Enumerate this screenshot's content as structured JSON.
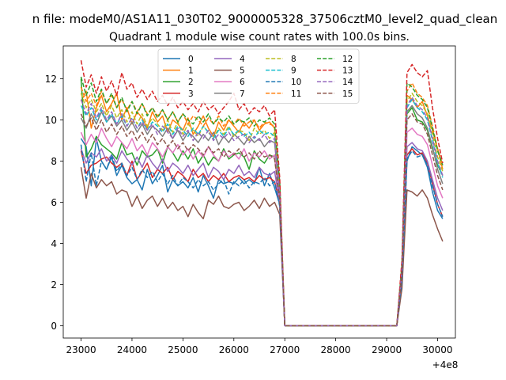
{
  "figure": {
    "suptitle": "n file: modeM0/AS1A11_030T02_9000005328_37506cztM0_level2_quad_clean",
    "title": "Quadrant 1 module wise count rates with 100.0s bins.",
    "x_offset_label": "+4e8"
  },
  "chart_data": {
    "type": "line",
    "title": "Quadrant 1 module wise count rates with 100.0s bins.",
    "xlabel": "",
    "ylabel": "",
    "x_offset": 400000000,
    "xlim": [
      22650,
      30350
    ],
    "ylim": [
      -0.6,
      13.6
    ],
    "xticks": [
      23000,
      24000,
      25000,
      26000,
      27000,
      28000,
      29000,
      30000
    ],
    "yticks": [
      0,
      2,
      4,
      6,
      8,
      10,
      12
    ],
    "grid": false,
    "legend": {
      "position": "top-center",
      "ncol": 4
    },
    "x_start": 23000,
    "x_step": 100,
    "series": [
      {
        "name": "0",
        "style": "solid",
        "color": "#1f77b4",
        "values": [
          9.1,
          8.7,
          6.8,
          9.1,
          8.0,
          7.6,
          8.2,
          7.3,
          7.8,
          7.2,
          6.9,
          7.1,
          6.6,
          7.6,
          6.9,
          7.3,
          7.8,
          6.5,
          7.1,
          6.8,
          7.0,
          6.7,
          7.2,
          6.5,
          7.3,
          6.8,
          6.2,
          7.1,
          6.9,
          7.0,
          6.9,
          7.2,
          6.9,
          7.1,
          6.9,
          7.7,
          6.8,
          7.4,
          6.7,
          5.9,
          0,
          0,
          0,
          0,
          0,
          0,
          0,
          0,
          0,
          0,
          0,
          0,
          0,
          0,
          0,
          0,
          0,
          0,
          0,
          0,
          0,
          0,
          0,
          2.3,
          8.0,
          8.7,
          8.5,
          8.3,
          7.7,
          6.5,
          5.6,
          5.2
        ]
      },
      {
        "name": "1",
        "style": "solid",
        "color": "#ff7f0e",
        "values": [
          10.9,
          11.4,
          9.6,
          10.6,
          11.2,
          10.4,
          10.8,
          11.3,
          10.0,
          10.6,
          9.8,
          10.4,
          10.1,
          9.6,
          10.4,
          9.9,
          10.2,
          9.4,
          10.0,
          9.8,
          9.5,
          10.1,
          9.3,
          9.7,
          10.2,
          9.6,
          9.2,
          9.9,
          9.5,
          10.0,
          9.7,
          9.4,
          9.9,
          9.6,
          10.0,
          9.5,
          9.8,
          9.9,
          9.6,
          6.2,
          0,
          0,
          0,
          0,
          0,
          0,
          0,
          0,
          0,
          0,
          0,
          0,
          0,
          0,
          0,
          0,
          0,
          0,
          0,
          0,
          0,
          0,
          0,
          2.6,
          11.2,
          11.0,
          10.6,
          10.9,
          10.2,
          9.5,
          8.6,
          7.6
        ]
      },
      {
        "name": "2",
        "style": "solid",
        "color": "#2ca02c",
        "values": [
          12.0,
          8.2,
          8.6,
          9.2,
          8.8,
          8.6,
          8.4,
          8.1,
          8.9,
          8.3,
          8.4,
          7.8,
          8.5,
          8.2,
          8.3,
          8.6,
          7.9,
          8.7,
          8.4,
          8.0,
          8.5,
          8.1,
          8.6,
          7.9,
          8.3,
          7.8,
          8.2,
          8.0,
          8.6,
          8.1,
          8.3,
          8.4,
          8.2,
          7.6,
          8.5,
          8.1,
          7.9,
          8.3,
          8.2,
          6.1,
          0,
          0,
          0,
          0,
          0,
          0,
          0,
          0,
          0,
          0,
          0,
          0,
          0,
          0,
          0,
          0,
          0,
          0,
          0,
          0,
          0,
          0,
          0,
          2.4,
          10.3,
          10.6,
          10.0,
          9.9,
          9.5,
          8.6,
          7.8,
          7.3
        ]
      },
      {
        "name": "3",
        "style": "solid",
        "color": "#d62728",
        "values": [
          8.5,
          7.4,
          7.8,
          7.9,
          8.1,
          8.2,
          7.9,
          7.7,
          7.9,
          7.3,
          8.0,
          7.1,
          7.5,
          7.9,
          7.2,
          7.6,
          7.4,
          7.7,
          7.1,
          7.5,
          7.3,
          7.0,
          7.6,
          7.2,
          7.4,
          7.0,
          7.3,
          7.1,
          7.4,
          7.0,
          7.2,
          7.3,
          7.1,
          7.2,
          7.0,
          7.3,
          7.1,
          7.2,
          7.0,
          6.0,
          0,
          0,
          0,
          0,
          0,
          0,
          0,
          0,
          0,
          0,
          0,
          0,
          0,
          0,
          0,
          0,
          0,
          0,
          0,
          0,
          0,
          0,
          0,
          2.1,
          8.3,
          8.6,
          8.3,
          8.4,
          7.9,
          6.9,
          5.9,
          5.3
        ]
      },
      {
        "name": "4",
        "style": "solid",
        "color": "#9467bd",
        "values": [
          8.6,
          7.9,
          8.4,
          8.2,
          8.6,
          8.0,
          8.3,
          7.9,
          8.5,
          8.1,
          7.8,
          8.2,
          7.7,
          8.3,
          7.9,
          7.6,
          8.1,
          7.5,
          7.9,
          7.7,
          7.4,
          7.8,
          7.3,
          7.6,
          7.9,
          7.2,
          7.7,
          7.5,
          7.1,
          7.6,
          7.4,
          7.8,
          7.3,
          7.5,
          7.2,
          7.7,
          7.4,
          7.3,
          7.5,
          6.0,
          0,
          0,
          0,
          0,
          0,
          0,
          0,
          0,
          0,
          0,
          0,
          0,
          0,
          0,
          0,
          0,
          0,
          0,
          0,
          0,
          0,
          0,
          0,
          2.3,
          8.7,
          8.9,
          8.6,
          8.5,
          8.0,
          7.1,
          6.2,
          5.6
        ]
      },
      {
        "name": "5",
        "style": "solid",
        "color": "#8c564b",
        "values": [
          7.7,
          6.2,
          7.4,
          6.7,
          7.1,
          6.8,
          7.0,
          6.4,
          6.6,
          6.5,
          5.8,
          6.3,
          5.7,
          6.1,
          6.3,
          5.8,
          6.2,
          5.7,
          6.0,
          5.6,
          5.8,
          5.3,
          5.9,
          5.5,
          5.2,
          6.1,
          5.9,
          6.3,
          5.8,
          5.7,
          5.9,
          6.0,
          5.6,
          5.8,
          6.1,
          5.7,
          6.2,
          5.8,
          6.0,
          5.4,
          0,
          0,
          0,
          0,
          0,
          0,
          0,
          0,
          0,
          0,
          0,
          0,
          0,
          0,
          0,
          0,
          0,
          0,
          0,
          0,
          0,
          0,
          0,
          1.8,
          6.6,
          6.5,
          6.3,
          6.6,
          6.2,
          5.4,
          4.7,
          4.1
        ]
      },
      {
        "name": "6",
        "style": "solid",
        "color": "#e377c2",
        "values": [
          9.4,
          8.8,
          9.3,
          8.9,
          9.6,
          9.1,
          8.7,
          9.2,
          8.9,
          8.6,
          9.1,
          8.5,
          8.8,
          8.3,
          8.9,
          8.6,
          8.2,
          8.7,
          8.4,
          8.8,
          8.3,
          8.6,
          8.1,
          8.5,
          8.2,
          8.7,
          8.3,
          8.0,
          8.5,
          8.2,
          8.4,
          8.1,
          8.6,
          8.0,
          8.4,
          8.2,
          8.5,
          8.1,
          8.3,
          6.0,
          0,
          0,
          0,
          0,
          0,
          0,
          0,
          0,
          0,
          0,
          0,
          0,
          0,
          0,
          0,
          0,
          0,
          0,
          0,
          0,
          0,
          0,
          0,
          2.5,
          9.4,
          9.6,
          9.3,
          9.2,
          8.8,
          7.8,
          6.8,
          6.2
        ]
      },
      {
        "name": "7",
        "style": "solid",
        "color": "#7f7f7f",
        "values": [
          10.1,
          9.6,
          10.3,
          9.8,
          10.4,
          9.9,
          10.2,
          9.7,
          10.0,
          9.5,
          9.9,
          9.4,
          9.8,
          9.3,
          9.7,
          9.5,
          9.2,
          9.6,
          9.1,
          9.5,
          9.0,
          9.4,
          9.2,
          8.9,
          9.3,
          9.0,
          9.4,
          8.8,
          9.2,
          8.9,
          9.3,
          9.1,
          8.8,
          9.2,
          8.9,
          9.1,
          8.7,
          9.0,
          8.9,
          6.3,
          0,
          0,
          0,
          0,
          0,
          0,
          0,
          0,
          0,
          0,
          0,
          0,
          0,
          0,
          0,
          0,
          0,
          0,
          0,
          0,
          0,
          0,
          0,
          2.6,
          10.4,
          10.7,
          10.3,
          10.1,
          9.6,
          8.7,
          7.6,
          6.9
        ]
      },
      {
        "name": "8",
        "style": "dashed",
        "color": "#bcbd22",
        "values": [
          11.3,
          10.6,
          11.0,
          10.4,
          10.8,
          10.2,
          10.7,
          10.1,
          10.5,
          9.9,
          10.4,
          9.8,
          10.3,
          9.7,
          10.1,
          9.8,
          9.5,
          10.0,
          9.4,
          9.9,
          9.3,
          9.8,
          9.5,
          9.2,
          9.7,
          9.4,
          9.1,
          9.6,
          9.3,
          9.7,
          9.2,
          9.5,
          9.4,
          9.0,
          9.6,
          9.3,
          9.5,
          9.1,
          9.4,
          6.6,
          0,
          0,
          0,
          0,
          0,
          0,
          0,
          0,
          0,
          0,
          0,
          0,
          0,
          0,
          0,
          0,
          0,
          0,
          0,
          0,
          0,
          0,
          0,
          2.8,
          10.9,
          11.3,
          10.9,
          10.7,
          10.3,
          9.3,
          8.2,
          7.5
        ]
      },
      {
        "name": "9",
        "style": "dashed",
        "color": "#17becf",
        "values": [
          10.7,
          10.2,
          10.6,
          10.0,
          10.5,
          9.9,
          10.3,
          9.8,
          10.2,
          9.7,
          10.1,
          9.6,
          10.0,
          9.5,
          9.9,
          9.7,
          9.4,
          9.8,
          9.3,
          9.7,
          9.5,
          9.2,
          9.6,
          9.3,
          9.7,
          9.4,
          9.1,
          9.5,
          9.2,
          9.6,
          9.3,
          9.5,
          9.2,
          9.4,
          9.1,
          9.5,
          9.3,
          9.4,
          9.2,
          6.5,
          0,
          0,
          0,
          0,
          0,
          0,
          0,
          0,
          0,
          0,
          0,
          0,
          0,
          0,
          0,
          0,
          0,
          0,
          0,
          0,
          0,
          0,
          0,
          2.7,
          10.6,
          11.0,
          10.6,
          10.4,
          10.0,
          9.0,
          7.9,
          7.2
        ]
      },
      {
        "name": "10",
        "style": "dashed",
        "color": "#1f77b4",
        "values": [
          8.8,
          7.0,
          8.4,
          6.8,
          8.0,
          7.6,
          8.3,
          7.5,
          7.9,
          7.3,
          7.7,
          7.1,
          7.6,
          7.2,
          7.5,
          7.0,
          7.4,
          6.9,
          7.3,
          6.8,
          7.2,
          7.0,
          6.7,
          7.1,
          6.8,
          7.0,
          6.6,
          6.9,
          7.1,
          6.4,
          7.0,
          6.8,
          7.1,
          6.7,
          7.0,
          6.9,
          7.2,
          6.8,
          7.0,
          5.8,
          0,
          0,
          0,
          0,
          0,
          0,
          0,
          0,
          0,
          0,
          0,
          0,
          0,
          0,
          0,
          0,
          0,
          0,
          0,
          0,
          0,
          0,
          0,
          2.2,
          8.1,
          8.5,
          8.2,
          8.3,
          7.8,
          6.8,
          5.9,
          5.3
        ]
      },
      {
        "name": "11",
        "style": "dashed",
        "color": "#ff7f0e",
        "values": [
          11.6,
          10.9,
          11.3,
          10.7,
          11.4,
          10.8,
          11.2,
          10.6,
          11.0,
          10.5,
          10.9,
          10.4,
          10.8,
          10.3,
          10.6,
          10.2,
          10.5,
          10.0,
          10.4,
          9.9,
          10.3,
          9.8,
          10.2,
          10.0,
          9.7,
          10.1,
          9.8,
          10.2,
          9.7,
          10.0,
          9.8,
          10.1,
          9.7,
          9.9,
          10.0,
          9.6,
          9.9,
          9.8,
          9.7,
          6.8,
          0,
          0,
          0,
          0,
          0,
          0,
          0,
          0,
          0,
          0,
          0,
          0,
          0,
          0,
          0,
          0,
          0,
          0,
          0,
          0,
          0,
          0,
          0,
          2.9,
          11.4,
          11.8,
          11.3,
          11.1,
          10.7,
          9.7,
          8.6,
          7.8
        ]
      },
      {
        "name": "12",
        "style": "dashed",
        "color": "#2ca02c",
        "values": [
          12.1,
          11.2,
          11.8,
          10.9,
          11.5,
          10.8,
          11.3,
          10.6,
          11.1,
          10.4,
          10.9,
          10.3,
          10.8,
          10.2,
          10.6,
          10.1,
          10.5,
          10.0,
          10.4,
          9.9,
          10.3,
          10.0,
          9.8,
          10.2,
          9.9,
          10.3,
          9.8,
          10.1,
          9.9,
          10.2,
          9.8,
          10.0,
          9.9,
          10.1,
          9.7,
          10.0,
          9.9,
          10.1,
          9.8,
          7.0,
          0,
          0,
          0,
          0,
          0,
          0,
          0,
          0,
          0,
          0,
          0,
          0,
          0,
          0,
          0,
          0,
          0,
          0,
          0,
          0,
          0,
          0,
          0,
          3.0,
          11.8,
          11.6,
          11.2,
          11.0,
          10.6,
          9.6,
          8.5,
          7.8
        ]
      },
      {
        "name": "13",
        "style": "dashed",
        "color": "#d62728",
        "values": [
          12.9,
          11.6,
          12.2,
          11.3,
          12.1,
          11.4,
          11.9,
          11.2,
          12.3,
          11.5,
          11.8,
          11.1,
          11.5,
          11.0,
          11.4,
          10.9,
          11.2,
          10.7,
          11.1,
          10.6,
          10.9,
          10.5,
          10.8,
          10.4,
          10.9,
          10.5,
          10.7,
          10.3,
          10.6,
          10.9,
          11.3,
          10.5,
          10.8,
          10.3,
          10.6,
          10.4,
          10.7,
          10.2,
          10.5,
          7.2,
          0,
          0,
          0,
          0,
          0,
          0,
          0,
          0,
          0,
          0,
          0,
          0,
          0,
          0,
          0,
          0,
          0,
          0,
          0,
          0,
          0,
          0,
          0,
          3.2,
          12.3,
          12.7,
          12.3,
          12.1,
          12.4,
          10.6,
          9.1,
          7.9
        ]
      },
      {
        "name": "14",
        "style": "dashed",
        "color": "#9467bd",
        "values": [
          11.0,
          10.3,
          10.8,
          10.1,
          10.6,
          10.0,
          10.4,
          9.8,
          10.3,
          9.7,
          10.1,
          9.6,
          9.9,
          9.5,
          9.8,
          9.3,
          9.7,
          9.4,
          9.1,
          9.6,
          9.2,
          9.5,
          9.0,
          9.4,
          9.1,
          9.5,
          9.0,
          9.3,
          9.1,
          9.4,
          9.0,
          9.2,
          9.3,
          8.9,
          9.2,
          9.0,
          9.3,
          8.9,
          9.1,
          6.4,
          0,
          0,
          0,
          0,
          0,
          0,
          0,
          0,
          0,
          0,
          0,
          0,
          0,
          0,
          0,
          0,
          0,
          0,
          0,
          0,
          0,
          0,
          0,
          2.7,
          10.7,
          11.1,
          10.7,
          10.5,
          10.1,
          9.1,
          8.0,
          7.3
        ]
      },
      {
        "name": "15",
        "style": "dashed",
        "color": "#8c564b",
        "values": [
          10.3,
          9.7,
          10.1,
          9.5,
          10.0,
          9.4,
          9.8,
          9.3,
          9.7,
          9.2,
          9.5,
          9.0,
          9.4,
          8.9,
          9.3,
          8.8,
          9.1,
          8.7,
          9.0,
          8.6,
          8.9,
          8.5,
          8.8,
          8.6,
          8.3,
          8.7,
          8.4,
          8.6,
          8.2,
          8.5,
          8.3,
          8.6,
          8.2,
          8.4,
          8.1,
          8.5,
          8.2,
          8.3,
          8.1,
          6.1,
          0,
          0,
          0,
          0,
          0,
          0,
          0,
          0,
          0,
          0,
          0,
          0,
          0,
          0,
          0,
          0,
          0,
          0,
          0,
          0,
          0,
          0,
          0,
          2.5,
          10.0,
          10.3,
          9.9,
          9.8,
          9.3,
          8.3,
          7.3,
          6.6
        ]
      }
    ]
  }
}
